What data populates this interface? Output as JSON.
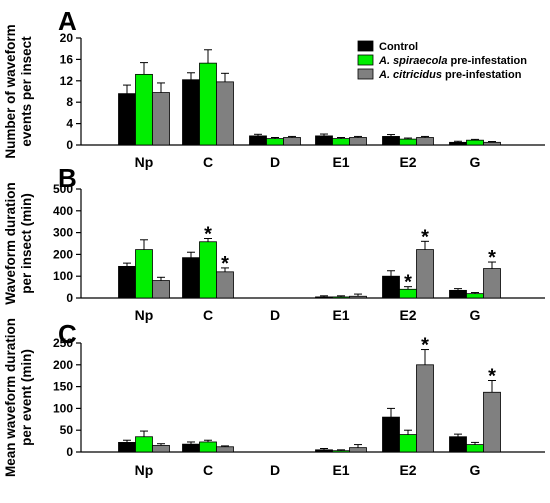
{
  "chart_data": [
    {
      "type": "bar",
      "panel_letter": "A",
      "ylabel": "Number of waveform events per insect",
      "ylabel_lines": [
        "Number of waveform",
        "events per insect"
      ],
      "ylim": [
        0,
        20
      ],
      "yticks": [
        0,
        4,
        8,
        12,
        16,
        20
      ],
      "yticklabels": [
        "0",
        "4",
        "8",
        "12",
        "16",
        "20"
      ],
      "categories": [
        "Np",
        "C",
        "D",
        "E1",
        "E2",
        "G"
      ],
      "legend_position": "top-right",
      "legend_labels": [
        {
          "italic": "",
          "rest": "Control"
        },
        {
          "italic": "A. spiraecola",
          "rest": " pre-infestation"
        },
        {
          "italic": "A. citricidus",
          "rest": " pre-infestation"
        }
      ],
      "series": [
        {
          "name": "Control",
          "color": "#000000",
          "values": [
            9.6,
            12.2,
            1.7,
            1.7,
            1.6,
            0.5
          ],
          "errors": [
            1.6,
            1.3,
            0.3,
            0.35,
            0.35,
            0.2
          ]
        },
        {
          "name": "A. spiraecola pre-infestation",
          "color": "#00ee00",
          "values": [
            13.2,
            15.3,
            1.2,
            1.2,
            1.1,
            0.9
          ],
          "errors": [
            2.2,
            2.5,
            0.2,
            0.2,
            0.2,
            0.15
          ]
        },
        {
          "name": "A. citricidus pre-infestation",
          "color": "#808080",
          "values": [
            9.8,
            11.8,
            1.4,
            1.4,
            1.4,
            0.5
          ],
          "errors": [
            1.8,
            1.6,
            0.2,
            0.2,
            0.2,
            0.15
          ]
        }
      ],
      "significance": []
    },
    {
      "type": "bar",
      "panel_letter": "B",
      "ylabel": "Waveform duration per insect (min)",
      "ylabel_lines": [
        "Waveform duration",
        "per insect (min)"
      ],
      "ylim": [
        0,
        500
      ],
      "yticks": [
        0,
        100,
        200,
        300,
        400,
        500
      ],
      "yticklabels": [
        "0",
        "100",
        "200",
        "300",
        "400",
        "500"
      ],
      "categories": [
        "Np",
        "C",
        "D",
        "E1",
        "E2",
        "G"
      ],
      "series": [
        {
          "name": "Control",
          "color": "#000000",
          "values": [
            145,
            185,
            0,
            5,
            100,
            35
          ],
          "errors": [
            15,
            25,
            0,
            5,
            25,
            8
          ]
        },
        {
          "name": "A. spiraecola pre-infestation",
          "color": "#00ee00",
          "values": [
            222,
            258,
            0,
            5,
            40,
            20
          ],
          "errors": [
            45,
            15,
            0,
            5,
            12,
            5
          ]
        },
        {
          "name": "A. citricidus pre-infestation",
          "color": "#808080",
          "values": [
            80,
            120,
            0,
            8,
            222,
            135
          ],
          "errors": [
            15,
            18,
            0,
            10,
            38,
            30
          ]
        }
      ],
      "significance": [
        {
          "category": "C",
          "series": 1,
          "label": "*"
        },
        {
          "category": "C",
          "series": 2,
          "label": "*"
        },
        {
          "category": "E2",
          "series": 1,
          "label": "*"
        },
        {
          "category": "E2",
          "series": 2,
          "label": "*"
        },
        {
          "category": "G",
          "series": 2,
          "label": "*"
        }
      ]
    },
    {
      "type": "bar",
      "panel_letter": "C",
      "ylabel": "Mean waveform duration per event (min)",
      "ylabel_lines": [
        "Mean waveform duration",
        "per event (min)"
      ],
      "ylim": [
        0,
        250
      ],
      "yticks": [
        0,
        50,
        100,
        150,
        200,
        250
      ],
      "yticklabels": [
        "0",
        "50",
        "100",
        "150",
        "200",
        "250"
      ],
      "categories": [
        "Np",
        "C",
        "D",
        "E1",
        "E2",
        "G"
      ],
      "series": [
        {
          "name": "Control",
          "color": "#000000",
          "values": [
            22,
            18,
            0,
            5,
            80,
            35
          ],
          "errors": [
            5,
            5,
            0,
            3,
            20,
            6
          ]
        },
        {
          "name": "A. spiraecola pre-infestation",
          "color": "#00ee00",
          "values": [
            35,
            23,
            0,
            3,
            40,
            17
          ],
          "errors": [
            13,
            4,
            0,
            2,
            10,
            5
          ]
        },
        {
          "name": "A. citricidus pre-infestation",
          "color": "#808080",
          "values": [
            15,
            12,
            0,
            10,
            200,
            137
          ],
          "errors": [
            4,
            2,
            0,
            7,
            35,
            27
          ]
        }
      ],
      "significance": [
        {
          "category": "E2",
          "series": 2,
          "label": "*"
        },
        {
          "category": "G",
          "series": 2,
          "label": "*"
        }
      ]
    }
  ]
}
